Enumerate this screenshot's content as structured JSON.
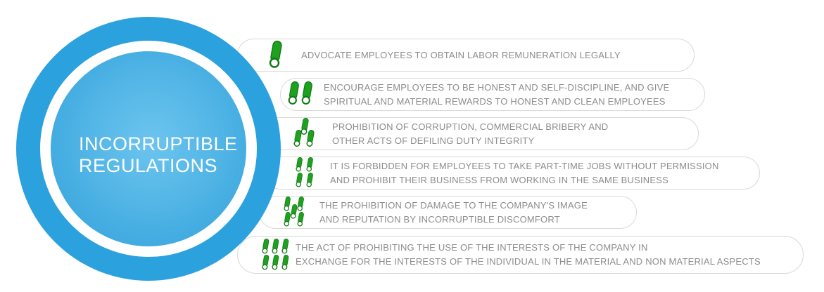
{
  "title": {
    "line1": "INCORRUPTIBLE",
    "line2": "REGULATIONS"
  },
  "items": [
    {
      "icon": "capsule-tally-1",
      "count": 1,
      "lines": [
        "ADVOCATE EMPLOYEES TO OBTAIN LABOR REMUNERATION LEGALLY",
        ""
      ]
    },
    {
      "icon": "capsule-tally-2",
      "count": 2,
      "lines": [
        "ENCOURAGE EMPLOYEES TO BE HONEST AND SELF-DISCIPLINE, AND GIVE",
        "SPIRITUAL AND MATERIAL REWARDS TO HONEST AND CLEAN EMPLOYEES"
      ]
    },
    {
      "icon": "capsule-tally-3",
      "count": 3,
      "lines": [
        "PROHIBITION OF CORRUPTION, COMMERCIAL BRIBERY AND",
        "OTHER ACTS OF DEFILING DUTY INTEGRITY"
      ]
    },
    {
      "icon": "capsule-tally-4",
      "count": 4,
      "lines": [
        "IT IS FORBIDDEN FOR EMPLOYEES TO TAKE PART-TIME JOBS WITHOUT PERMISSION",
        "AND PROHIBIT THEIR BUSINESS FROM WORKING IN THE SAME BUSINESS"
      ]
    },
    {
      "icon": "capsule-tally-5",
      "count": 5,
      "lines": [
        "THE PROHIBITION OF DAMAGE TO THE COMPANY'S IMAGE",
        "AND REPUTATION BY INCORRUPTIBLE DISCOMFORT"
      ]
    },
    {
      "icon": "capsule-tally-6",
      "count": 6,
      "lines": [
        "THE ACT OF PROHIBITING THE USE OF THE INTERESTS OF THE COMPANY IN",
        "EXCHANGE FOR THE INTERESTS OF THE INDIVIDUAL IN THE MATERIAL AND NON MATERIAL ASPECTS"
      ]
    }
  ],
  "colors": {
    "icon_green": "#1fa11f",
    "icon_green_dark": "#0c7a10",
    "text_gray": "#8c8c8c",
    "pill_border": "#d9d9d9",
    "circle_rim_blue": "#2ba1de",
    "circle_center_blue": "#6cc4ee",
    "circle_edge_blue": "#2f9fd9",
    "ring_white": "#ffffff",
    "title_white": "#ffffff"
  }
}
